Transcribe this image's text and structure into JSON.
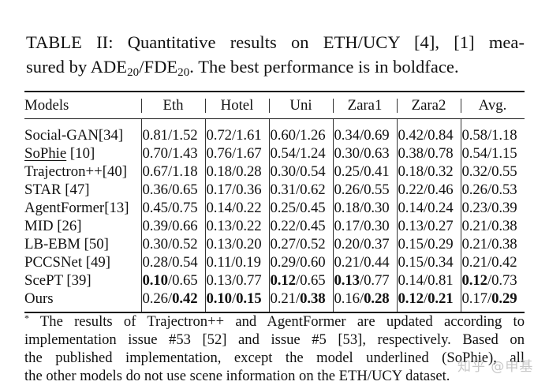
{
  "caption": {
    "line1": "TABLE II: Quantitative results on ETH/UCY [4], [1] mea-",
    "line2_pre": "sured by ADE",
    "sub1": "20",
    "slash": "/FDE",
    "sub2": "20",
    "line2_post": ". The best performance is in boldface."
  },
  "table": {
    "headers": [
      "Models",
      "Eth",
      "Hotel",
      "Uni",
      "Zara1",
      "Zara2",
      "Avg."
    ],
    "rows": [
      {
        "model": "Social-GAN[34]",
        "underline": false,
        "cells": [
          [
            "0.81",
            "1.52"
          ],
          [
            "0.72",
            "1.61"
          ],
          [
            "0.60",
            "1.26"
          ],
          [
            "0.34",
            "0.69"
          ],
          [
            "0.42",
            "0.84"
          ],
          [
            "0.58",
            "1.18"
          ]
        ]
      },
      {
        "model": "SoPhie",
        "model_ref": " [10]",
        "underline": true,
        "cells": [
          [
            "0.70",
            "1.43"
          ],
          [
            "0.76",
            "1.67"
          ],
          [
            "0.54",
            "1.24"
          ],
          [
            "0.30",
            "0.63"
          ],
          [
            "0.38",
            "0.78"
          ],
          [
            "0.54",
            "1.15"
          ]
        ]
      },
      {
        "model": "Trajectron++[40]",
        "underline": false,
        "cells": [
          [
            "0.67",
            "1.18"
          ],
          [
            "0.18",
            "0.28"
          ],
          [
            "0.30",
            "0.54"
          ],
          [
            "0.25",
            "0.41"
          ],
          [
            "0.18",
            "0.32"
          ],
          [
            "0.32",
            "0.55"
          ]
        ]
      },
      {
        "model": "STAR [47]",
        "underline": false,
        "cells": [
          [
            "0.36",
            "0.65"
          ],
          [
            "0.17",
            "0.36"
          ],
          [
            "0.31",
            "0.62"
          ],
          [
            "0.26",
            "0.55"
          ],
          [
            "0.22",
            "0.46"
          ],
          [
            "0.26",
            "0.53"
          ]
        ]
      },
      {
        "model": "AgentFormer[13]",
        "underline": false,
        "cells": [
          [
            "0.45",
            "0.75"
          ],
          [
            "0.14",
            "0.22"
          ],
          [
            "0.25",
            "0.45"
          ],
          [
            "0.18",
            "0.30"
          ],
          [
            "0.14",
            "0.24"
          ],
          [
            "0.23",
            "0.39"
          ]
        ]
      },
      {
        "model": "MID [26]",
        "underline": false,
        "cells": [
          [
            "0.39",
            "0.66"
          ],
          [
            "0.13",
            "0.22"
          ],
          [
            "0.22",
            "0.45"
          ],
          [
            "0.17",
            "0.30"
          ],
          [
            "0.13",
            "0.27"
          ],
          [
            "0.21",
            "0.38"
          ]
        ]
      },
      {
        "model": "LB-EBM [50]",
        "underline": false,
        "cells": [
          [
            "0.30",
            "0.52"
          ],
          [
            "0.13",
            "0.20"
          ],
          [
            "0.27",
            "0.52"
          ],
          [
            "0.20",
            "0.37"
          ],
          [
            "0.15",
            "0.29"
          ],
          [
            "0.21",
            "0.38"
          ]
        ]
      },
      {
        "model": "PCCSNet [49]",
        "underline": false,
        "cells": [
          [
            "0.28",
            "0.54"
          ],
          [
            "0.11",
            "0.19"
          ],
          [
            "0.29",
            "0.60"
          ],
          [
            "0.21",
            "0.44"
          ],
          [
            "0.15",
            "0.34"
          ],
          [
            "0.21",
            "0.42"
          ]
        ]
      },
      {
        "model": "ScePT [39]",
        "underline": false,
        "cells": [
          [
            "0.10",
            "0.65"
          ],
          [
            "0.13",
            "0.77"
          ],
          [
            "0.12",
            "0.65"
          ],
          [
            "0.13",
            "0.77"
          ],
          [
            "0.14",
            "0.81"
          ],
          [
            "0.12",
            "0.73"
          ]
        ]
      },
      {
        "model": "Ours",
        "underline": false,
        "cells": [
          [
            "0.26",
            "0.42"
          ],
          [
            "0.10",
            "0.15"
          ],
          [
            "0.21",
            "0.38"
          ],
          [
            "0.16",
            "0.28"
          ],
          [
            "0.12",
            "0.21"
          ],
          [
            "0.17",
            "0.29"
          ]
        ]
      }
    ],
    "bold": {
      "8": [
        [
          true,
          false
        ],
        [
          false,
          false
        ],
        [
          true,
          false
        ],
        [
          true,
          false
        ],
        [
          false,
          false
        ],
        [
          true,
          false
        ]
      ],
      "9": [
        [
          false,
          true
        ],
        [
          true,
          true
        ],
        [
          false,
          true
        ],
        [
          false,
          true
        ],
        [
          true,
          true
        ],
        [
          false,
          true
        ]
      ]
    }
  },
  "footnote": {
    "marker": "*",
    "lines": [
      " The results of Trajectron++ and AgentFormer are updated according to",
      "implementation issue #53 [52] and issue #5 [53], respectively. Based on",
      "the published implementation, except the model underlined (SoPhie), all",
      "the other models do not use scene information on the ETH/UCY dataset."
    ]
  },
  "watermark": "知乎 @申基"
}
